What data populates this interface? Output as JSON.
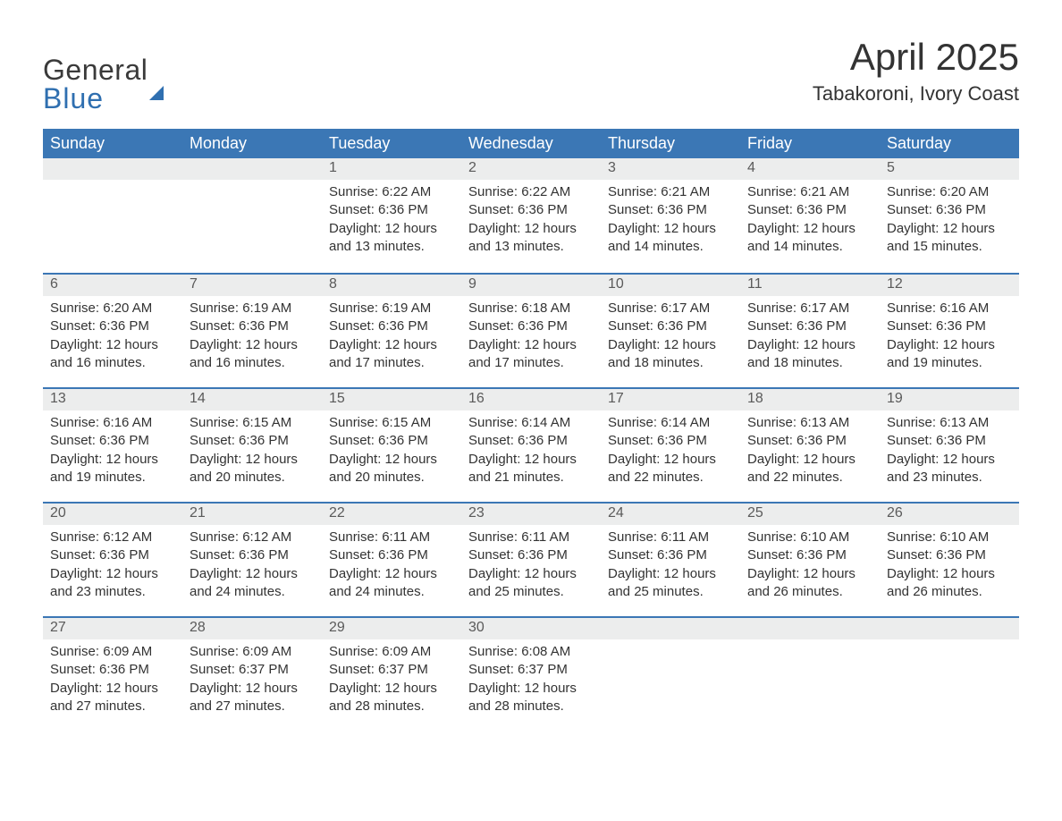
{
  "brand": {
    "line1": "General",
    "line2": "Blue",
    "brand_color": "#2f6fb0",
    "text_color": "#3a3a3a"
  },
  "header": {
    "month_title": "April 2025",
    "location": "Tabakoroni, Ivory Coast"
  },
  "styling": {
    "header_bg": "#3b77b5",
    "header_fg": "#ffffff",
    "row_accent": "#3b77b5",
    "daynum_bg": "#eceded",
    "page_bg": "#ffffff",
    "body_text": "#333333",
    "month_title_fontsize": 42,
    "location_fontsize": 22,
    "weekday_fontsize": 18,
    "daynum_fontsize": 16,
    "cell_fontsize": 15
  },
  "calendar": {
    "weekday_labels": [
      "Sunday",
      "Monday",
      "Tuesday",
      "Wednesday",
      "Thursday",
      "Friday",
      "Saturday"
    ],
    "leading_blanks": 2,
    "trailing_blanks": 3,
    "days": [
      {
        "n": "1",
        "sunrise": "Sunrise: 6:22 AM",
        "sunset": "Sunset: 6:36 PM",
        "daylight1": "Daylight: 12 hours",
        "daylight2": "and 13 minutes."
      },
      {
        "n": "2",
        "sunrise": "Sunrise: 6:22 AM",
        "sunset": "Sunset: 6:36 PM",
        "daylight1": "Daylight: 12 hours",
        "daylight2": "and 13 minutes."
      },
      {
        "n": "3",
        "sunrise": "Sunrise: 6:21 AM",
        "sunset": "Sunset: 6:36 PM",
        "daylight1": "Daylight: 12 hours",
        "daylight2": "and 14 minutes."
      },
      {
        "n": "4",
        "sunrise": "Sunrise: 6:21 AM",
        "sunset": "Sunset: 6:36 PM",
        "daylight1": "Daylight: 12 hours",
        "daylight2": "and 14 minutes."
      },
      {
        "n": "5",
        "sunrise": "Sunrise: 6:20 AM",
        "sunset": "Sunset: 6:36 PM",
        "daylight1": "Daylight: 12 hours",
        "daylight2": "and 15 minutes."
      },
      {
        "n": "6",
        "sunrise": "Sunrise: 6:20 AM",
        "sunset": "Sunset: 6:36 PM",
        "daylight1": "Daylight: 12 hours",
        "daylight2": "and 16 minutes."
      },
      {
        "n": "7",
        "sunrise": "Sunrise: 6:19 AM",
        "sunset": "Sunset: 6:36 PM",
        "daylight1": "Daylight: 12 hours",
        "daylight2": "and 16 minutes."
      },
      {
        "n": "8",
        "sunrise": "Sunrise: 6:19 AM",
        "sunset": "Sunset: 6:36 PM",
        "daylight1": "Daylight: 12 hours",
        "daylight2": "and 17 minutes."
      },
      {
        "n": "9",
        "sunrise": "Sunrise: 6:18 AM",
        "sunset": "Sunset: 6:36 PM",
        "daylight1": "Daylight: 12 hours",
        "daylight2": "and 17 minutes."
      },
      {
        "n": "10",
        "sunrise": "Sunrise: 6:17 AM",
        "sunset": "Sunset: 6:36 PM",
        "daylight1": "Daylight: 12 hours",
        "daylight2": "and 18 minutes."
      },
      {
        "n": "11",
        "sunrise": "Sunrise: 6:17 AM",
        "sunset": "Sunset: 6:36 PM",
        "daylight1": "Daylight: 12 hours",
        "daylight2": "and 18 minutes."
      },
      {
        "n": "12",
        "sunrise": "Sunrise: 6:16 AM",
        "sunset": "Sunset: 6:36 PM",
        "daylight1": "Daylight: 12 hours",
        "daylight2": "and 19 minutes."
      },
      {
        "n": "13",
        "sunrise": "Sunrise: 6:16 AM",
        "sunset": "Sunset: 6:36 PM",
        "daylight1": "Daylight: 12 hours",
        "daylight2": "and 19 minutes."
      },
      {
        "n": "14",
        "sunrise": "Sunrise: 6:15 AM",
        "sunset": "Sunset: 6:36 PM",
        "daylight1": "Daylight: 12 hours",
        "daylight2": "and 20 minutes."
      },
      {
        "n": "15",
        "sunrise": "Sunrise: 6:15 AM",
        "sunset": "Sunset: 6:36 PM",
        "daylight1": "Daylight: 12 hours",
        "daylight2": "and 20 minutes."
      },
      {
        "n": "16",
        "sunrise": "Sunrise: 6:14 AM",
        "sunset": "Sunset: 6:36 PM",
        "daylight1": "Daylight: 12 hours",
        "daylight2": "and 21 minutes."
      },
      {
        "n": "17",
        "sunrise": "Sunrise: 6:14 AM",
        "sunset": "Sunset: 6:36 PM",
        "daylight1": "Daylight: 12 hours",
        "daylight2": "and 22 minutes."
      },
      {
        "n": "18",
        "sunrise": "Sunrise: 6:13 AM",
        "sunset": "Sunset: 6:36 PM",
        "daylight1": "Daylight: 12 hours",
        "daylight2": "and 22 minutes."
      },
      {
        "n": "19",
        "sunrise": "Sunrise: 6:13 AM",
        "sunset": "Sunset: 6:36 PM",
        "daylight1": "Daylight: 12 hours",
        "daylight2": "and 23 minutes."
      },
      {
        "n": "20",
        "sunrise": "Sunrise: 6:12 AM",
        "sunset": "Sunset: 6:36 PM",
        "daylight1": "Daylight: 12 hours",
        "daylight2": "and 23 minutes."
      },
      {
        "n": "21",
        "sunrise": "Sunrise: 6:12 AM",
        "sunset": "Sunset: 6:36 PM",
        "daylight1": "Daylight: 12 hours",
        "daylight2": "and 24 minutes."
      },
      {
        "n": "22",
        "sunrise": "Sunrise: 6:11 AM",
        "sunset": "Sunset: 6:36 PM",
        "daylight1": "Daylight: 12 hours",
        "daylight2": "and 24 minutes."
      },
      {
        "n": "23",
        "sunrise": "Sunrise: 6:11 AM",
        "sunset": "Sunset: 6:36 PM",
        "daylight1": "Daylight: 12 hours",
        "daylight2": "and 25 minutes."
      },
      {
        "n": "24",
        "sunrise": "Sunrise: 6:11 AM",
        "sunset": "Sunset: 6:36 PM",
        "daylight1": "Daylight: 12 hours",
        "daylight2": "and 25 minutes."
      },
      {
        "n": "25",
        "sunrise": "Sunrise: 6:10 AM",
        "sunset": "Sunset: 6:36 PM",
        "daylight1": "Daylight: 12 hours",
        "daylight2": "and 26 minutes."
      },
      {
        "n": "26",
        "sunrise": "Sunrise: 6:10 AM",
        "sunset": "Sunset: 6:36 PM",
        "daylight1": "Daylight: 12 hours",
        "daylight2": "and 26 minutes."
      },
      {
        "n": "27",
        "sunrise": "Sunrise: 6:09 AM",
        "sunset": "Sunset: 6:36 PM",
        "daylight1": "Daylight: 12 hours",
        "daylight2": "and 27 minutes."
      },
      {
        "n": "28",
        "sunrise": "Sunrise: 6:09 AM",
        "sunset": "Sunset: 6:37 PM",
        "daylight1": "Daylight: 12 hours",
        "daylight2": "and 27 minutes."
      },
      {
        "n": "29",
        "sunrise": "Sunrise: 6:09 AM",
        "sunset": "Sunset: 6:37 PM",
        "daylight1": "Daylight: 12 hours",
        "daylight2": "and 28 minutes."
      },
      {
        "n": "30",
        "sunrise": "Sunrise: 6:08 AM",
        "sunset": "Sunset: 6:37 PM",
        "daylight1": "Daylight: 12 hours",
        "daylight2": "and 28 minutes."
      }
    ]
  }
}
